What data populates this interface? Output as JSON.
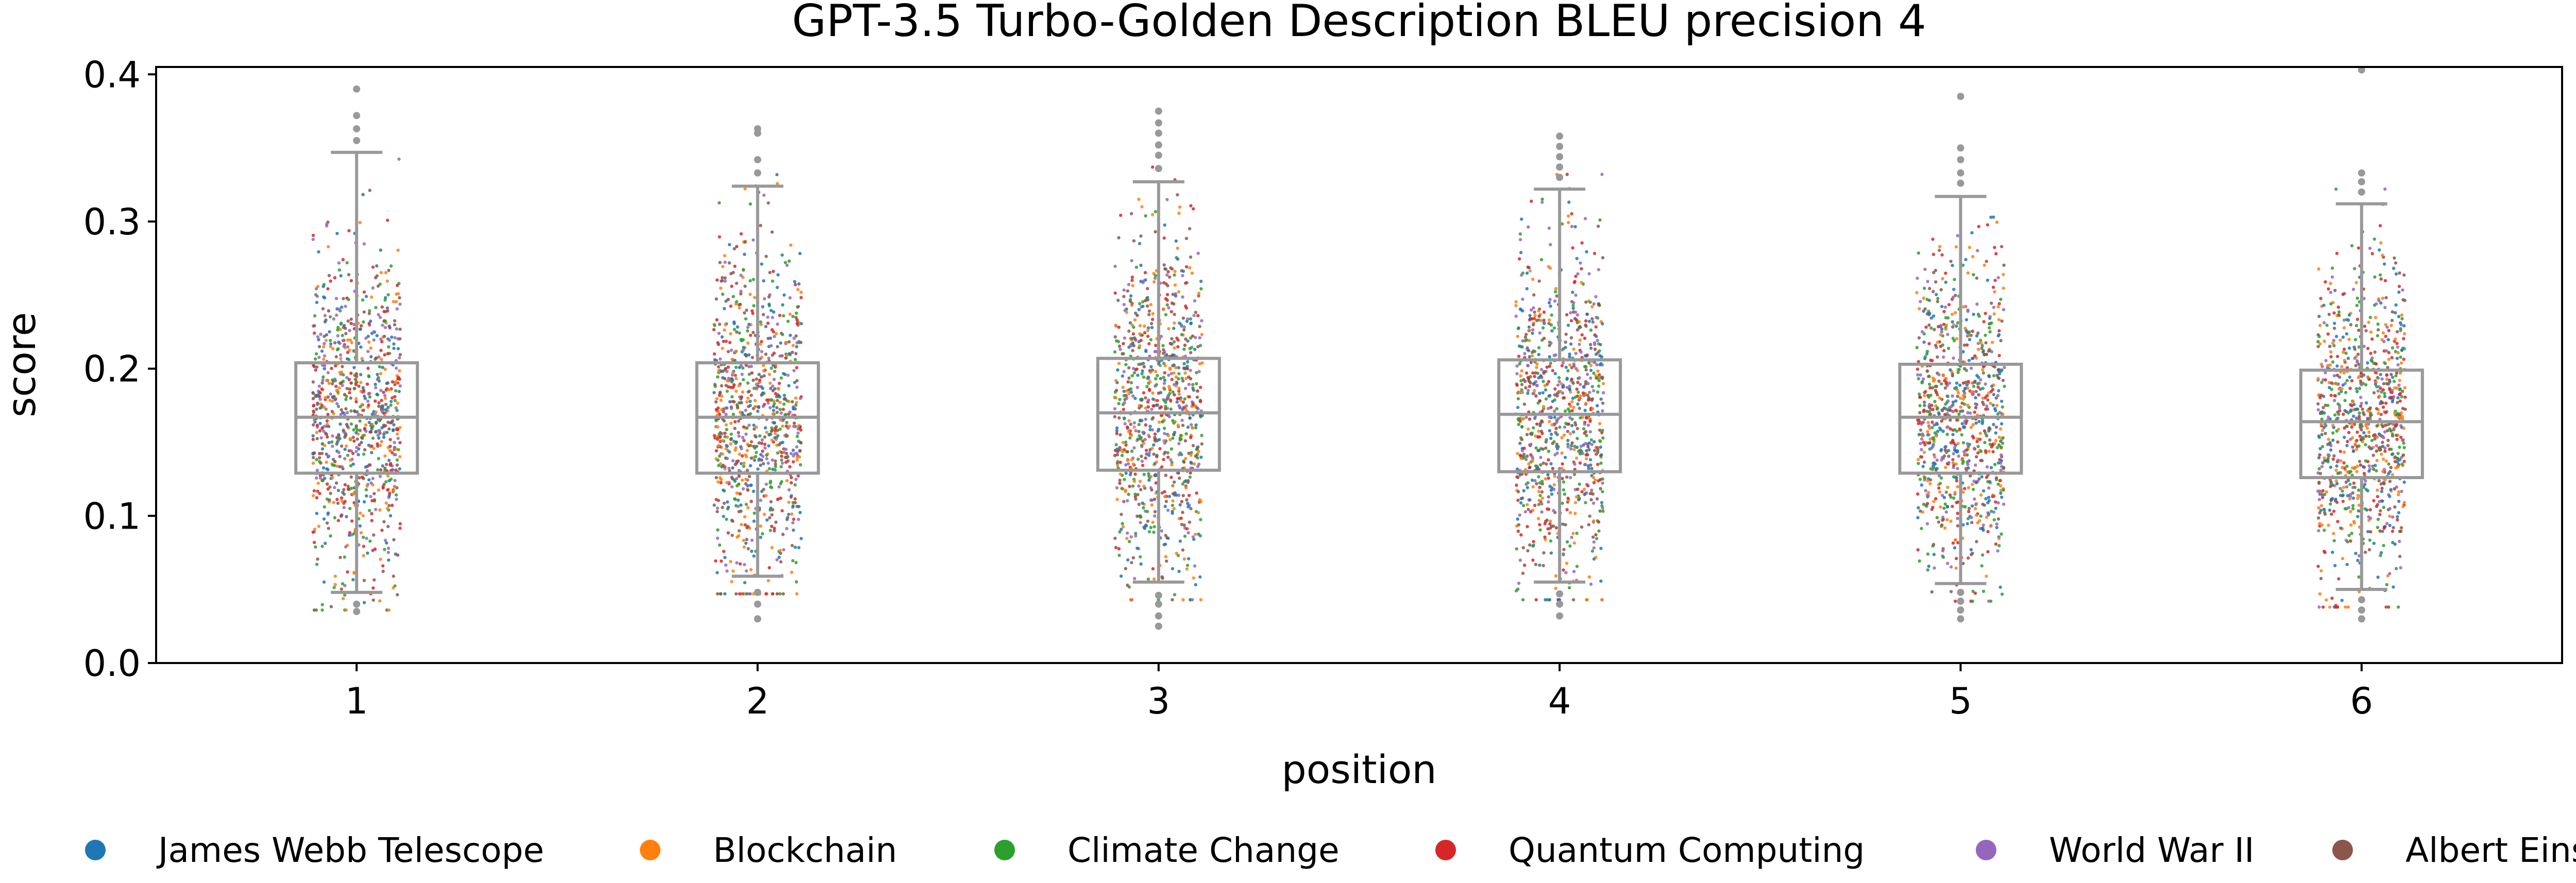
{
  "chart_data": {
    "type": "box",
    "title": "GPT-3.5 Turbo-Golden Description BLEU precision 4",
    "xlabel": "position",
    "ylabel": "score",
    "ylim": [
      0,
      0.405
    ],
    "yticks": [
      "0.0",
      "0.1",
      "0.2",
      "0.3",
      "0.4"
    ],
    "categories": [
      "1",
      "2",
      "3",
      "4",
      "5",
      "6"
    ],
    "overlay": "jittered points colored by topic",
    "legend_position": "bottom",
    "boxes": [
      {
        "position": "1",
        "q1": 0.129,
        "median": 0.167,
        "q3": 0.204,
        "whisker_low": 0.048,
        "whisker_high": 0.347,
        "outliers": [
          0.035,
          0.04,
          0.355,
          0.363,
          0.372,
          0.39
        ]
      },
      {
        "position": "2",
        "q1": 0.129,
        "median": 0.167,
        "q3": 0.204,
        "whisker_low": 0.059,
        "whisker_high": 0.324,
        "outliers": [
          0.03,
          0.04,
          0.048,
          0.333,
          0.342,
          0.36,
          0.363
        ]
      },
      {
        "position": "3",
        "q1": 0.131,
        "median": 0.17,
        "q3": 0.207,
        "whisker_low": 0.055,
        "whisker_high": 0.327,
        "outliers": [
          0.025,
          0.032,
          0.04,
          0.046,
          0.336,
          0.345,
          0.352,
          0.36,
          0.367,
          0.375
        ]
      },
      {
        "position": "4",
        "q1": 0.13,
        "median": 0.169,
        "q3": 0.206,
        "whisker_low": 0.055,
        "whisker_high": 0.322,
        "outliers": [
          0.032,
          0.04,
          0.047,
          0.33,
          0.337,
          0.344,
          0.351,
          0.358
        ]
      },
      {
        "position": "5",
        "q1": 0.129,
        "median": 0.167,
        "q3": 0.203,
        "whisker_low": 0.054,
        "whisker_high": 0.317,
        "outliers": [
          0.03,
          0.036,
          0.042,
          0.048,
          0.326,
          0.333,
          0.342,
          0.35,
          0.385
        ]
      },
      {
        "position": "6",
        "q1": 0.126,
        "median": 0.164,
        "q3": 0.199,
        "whisker_low": 0.05,
        "whisker_high": 0.312,
        "outliers": [
          0.03,
          0.036,
          0.043,
          0.32,
          0.327,
          0.333,
          0.403
        ]
      }
    ],
    "series": [
      {
        "name": "James Webb Telescope",
        "color": "#1f77b4"
      },
      {
        "name": "Blockchain",
        "color": "#ff7f0e"
      },
      {
        "name": "Climate Change",
        "color": "#2ca02c"
      },
      {
        "name": "Quantum Computing",
        "color": "#d62728"
      },
      {
        "name": "World War II",
        "color": "#9467bd"
      },
      {
        "name": "Albert Einstein",
        "color": "#8c564b"
      }
    ],
    "box_color": "#999999"
  }
}
